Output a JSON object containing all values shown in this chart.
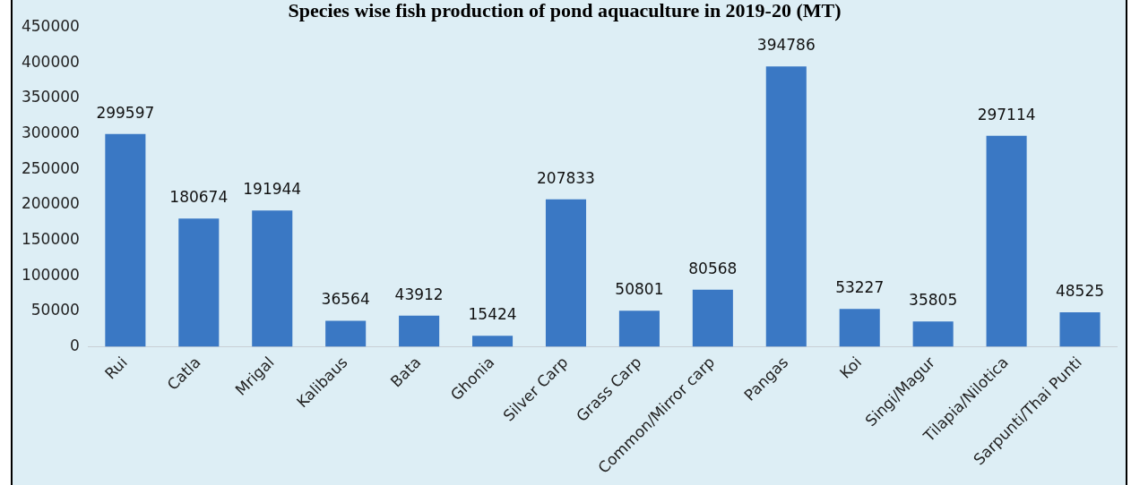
{
  "chart_data": {
    "type": "bar",
    "title": "Species wise fish production of pond aquaculture in 2019-20 (MT)",
    "categories": [
      "Rui",
      "Catla",
      "Mrigal",
      "Kalibaus",
      "Bata",
      "Ghonia",
      "Silver Carp",
      "Grass Carp",
      "Common/Mirror carp",
      "Pangas",
      "Koi",
      "Singi/Magur",
      "Tilapia/Nilotica",
      "Sarpunti/Thai Punti"
    ],
    "values": [
      299597,
      180674,
      191944,
      36564,
      43912,
      15424,
      207833,
      50801,
      80568,
      394786,
      53227,
      35805,
      297114,
      48525
    ],
    "color": "#3a78c4",
    "ylim": [
      0,
      450000
    ],
    "yticks": [
      0,
      50000,
      100000,
      150000,
      200000,
      250000,
      300000,
      350000,
      400000,
      450000
    ],
    "grid": false,
    "legend": false,
    "data_labels": true
  }
}
